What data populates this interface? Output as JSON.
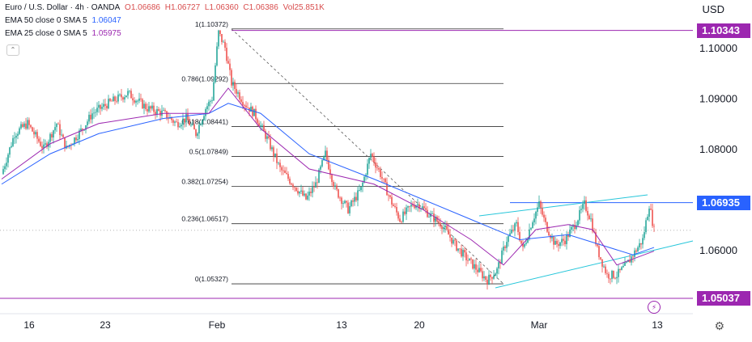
{
  "header": {
    "pair": "Euro / U.S. Dollar · 4h · OANDA",
    "open": "O1.06686",
    "high": "H1.06727",
    "low": "L1.06360",
    "close": "C1.06386",
    "volume": "Vol25.851K",
    "ema50_label": "EMA 50 close 0 SMA 5",
    "ema50_value": "1.06047",
    "ema25_label": "EMA 25 close 0 SMA 5",
    "ema25_value": "1.05975",
    "currency": "USD"
  },
  "colors": {
    "up": "#26a69a",
    "down": "#ef5350",
    "ema50": "#2962ff",
    "ema25": "#9c27b0",
    "level_blue": "#2962ff",
    "level_purple": "#9c27b0",
    "channel": "#26c6da"
  },
  "price_tags": [
    {
      "label": "1.10343",
      "color": "#9c27b0",
      "value": 1.10343
    },
    {
      "label": "1.06935",
      "color": "#2962ff",
      "value": 1.06935
    },
    {
      "label": "1.05037",
      "color": "#9c27b0",
      "value": 1.05037
    }
  ],
  "chart_data": {
    "type": "candlestick",
    "y_axis": {
      "ticks": [
        1.06,
        1.07,
        1.08,
        1.09,
        1.1
      ],
      "tick_labels": [
        "1.06000",
        "1.07000",
        "1.08000",
        "1.09000",
        "1.10000"
      ],
      "range": [
        1.049,
        1.106
      ]
    },
    "x_axis": {
      "tick_labels": [
        "16",
        "23",
        "Feb",
        "13",
        "20",
        "Mar",
        "13"
      ]
    },
    "fib_levels": [
      {
        "label": "1(1.10372)",
        "value": 1.10372
      },
      {
        "label": "0.786(1.09292)",
        "value": 1.09292
      },
      {
        "label": "0.618(1.08441)",
        "value": 1.08441
      },
      {
        "label": "0.5(1.07849)",
        "value": 1.07849
      },
      {
        "label": "0.382(1.07254)",
        "value": 1.07254
      },
      {
        "label": "0.236(1.06517)",
        "value": 1.06517
      },
      {
        "label": "0(1.05327)",
        "value": 1.05327
      }
    ],
    "horizontal_levels": [
      1.10343,
      1.06935,
      1.05037
    ],
    "last_close": 1.06386,
    "path": [
      [
        0,
        1.075
      ],
      [
        8,
        1.083
      ],
      [
        16,
        1.085
      ],
      [
        26,
        1.08
      ],
      [
        34,
        1.085
      ],
      [
        40,
        1.08
      ],
      [
        50,
        1.084
      ],
      [
        56,
        1.087
      ],
      [
        66,
        1.089
      ],
      [
        78,
        1.091
      ],
      [
        90,
        1.088
      ],
      [
        100,
        1.087
      ],
      [
        108,
        1.085
      ],
      [
        114,
        1.086
      ],
      [
        120,
        1.083
      ],
      [
        126,
        1.088
      ],
      [
        130,
        1.09
      ],
      [
        134,
        1.103
      ],
      [
        138,
        1.1
      ],
      [
        142,
        1.093
      ],
      [
        150,
        1.089
      ],
      [
        156,
        1.087
      ],
      [
        164,
        1.082
      ],
      [
        172,
        1.076
      ],
      [
        180,
        1.073
      ],
      [
        188,
        1.07
      ],
      [
        194,
        1.073
      ],
      [
        200,
        1.079
      ],
      [
        206,
        1.072
      ],
      [
        214,
        1.068
      ],
      [
        222,
        1.072
      ],
      [
        228,
        1.079
      ],
      [
        234,
        1.075
      ],
      [
        240,
        1.07
      ],
      [
        246,
        1.066
      ],
      [
        254,
        1.069
      ],
      [
        258,
        1.069
      ],
      [
        264,
        1.067
      ],
      [
        272,
        1.065
      ],
      [
        280,
        1.061
      ],
      [
        288,
        1.058
      ],
      [
        294,
        1.056
      ],
      [
        300,
        1.054
      ],
      [
        306,
        1.056
      ],
      [
        312,
        1.062
      ],
      [
        318,
        1.065
      ],
      [
        322,
        1.06
      ],
      [
        328,
        1.066
      ],
      [
        332,
        1.069
      ],
      [
        336,
        1.065
      ],
      [
        342,
        1.061
      ],
      [
        348,
        1.062
      ],
      [
        354,
        1.065
      ],
      [
        360,
        1.069
      ],
      [
        364,
        1.066
      ],
      [
        368,
        1.06
      ],
      [
        374,
        1.055
      ],
      [
        380,
        1.055
      ],
      [
        386,
        1.057
      ],
      [
        392,
        1.06
      ],
      [
        396,
        1.062
      ],
      [
        400,
        1.069
      ],
      [
        403,
        1.06386
      ]
    ],
    "ema50_path": [
      [
        0,
        1.073
      ],
      [
        30,
        1.079
      ],
      [
        60,
        1.083
      ],
      [
        100,
        1.086
      ],
      [
        128,
        1.087
      ],
      [
        140,
        1.089
      ],
      [
        160,
        1.087
      ],
      [
        190,
        1.079
      ],
      [
        230,
        1.074
      ],
      [
        260,
        1.07
      ],
      [
        290,
        1.066
      ],
      [
        320,
        1.062
      ],
      [
        350,
        1.063
      ],
      [
        370,
        1.061
      ],
      [
        390,
        1.059
      ],
      [
        403,
        1.06047
      ]
    ],
    "ema25_path": [
      [
        0,
        1.074
      ],
      [
        30,
        1.081
      ],
      [
        60,
        1.085
      ],
      [
        100,
        1.087
      ],
      [
        128,
        1.087
      ],
      [
        140,
        1.092
      ],
      [
        160,
        1.084
      ],
      [
        190,
        1.076
      ],
      [
        230,
        1.073
      ],
      [
        260,
        1.068
      ],
      [
        290,
        1.062
      ],
      [
        310,
        1.057
      ],
      [
        330,
        1.064
      ],
      [
        350,
        1.065
      ],
      [
        365,
        1.064
      ],
      [
        380,
        1.057
      ],
      [
        403,
        1.05975
      ]
    ]
  }
}
